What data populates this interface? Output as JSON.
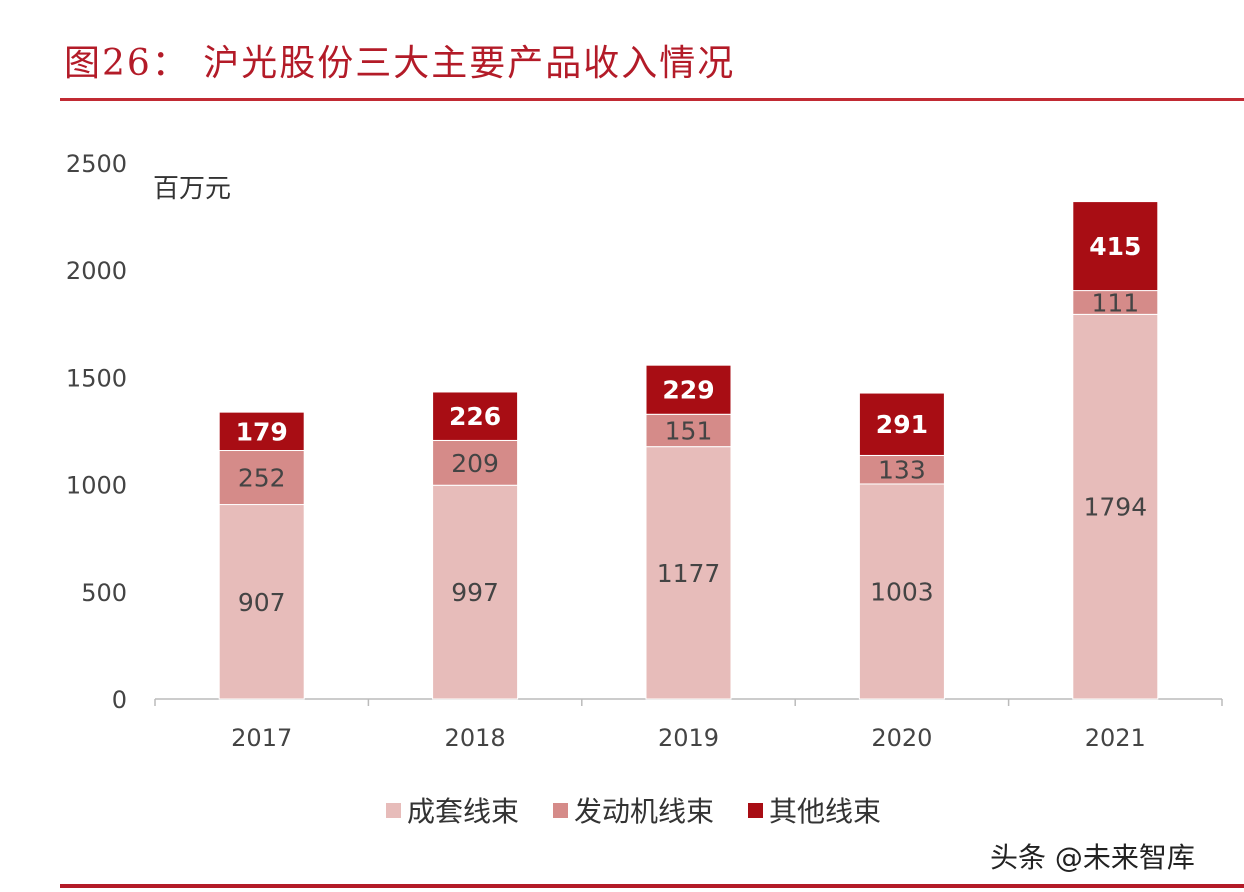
{
  "header": {
    "title": "图26： 沪光股份三大主要产品收入情况"
  },
  "watermark": "头条 @未来智库",
  "chart_data": {
    "type": "bar",
    "stacked": true,
    "title": "图26： 沪光股份三大主要产品收入情况",
    "unit_label": "百万元",
    "xlabel": "",
    "ylabel": "",
    "categories": [
      "2017",
      "2018",
      "2019",
      "2020",
      "2021"
    ],
    "ylim": [
      0,
      2500
    ],
    "yticks": [
      "0",
      "500",
      "1000",
      "1500",
      "2000",
      "2500"
    ],
    "grid": false,
    "legend_position": "bottom",
    "series": [
      {
        "name": "成套线束",
        "values": [
          907,
          997,
          1177,
          1003,
          1794
        ],
        "color": "#e7bcba"
      },
      {
        "name": "发动机线束",
        "values": [
          252,
          209,
          151,
          133,
          111
        ],
        "color": "#d58b89"
      },
      {
        "name": "其他线束",
        "values": [
          179,
          226,
          229,
          291,
          415
        ],
        "color": "#a80d14"
      }
    ]
  }
}
